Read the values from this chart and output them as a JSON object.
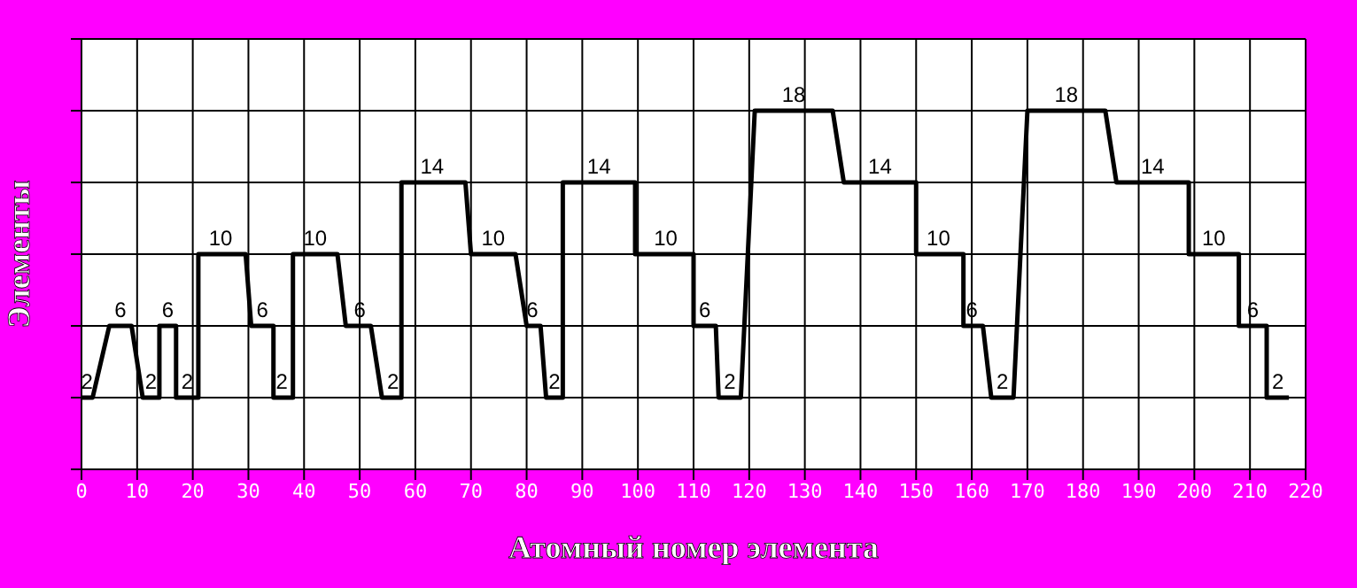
{
  "chart_data": {
    "type": "line",
    "xlabel": "Атомный номер элемента",
    "ylabel": "Элементы",
    "grid": true,
    "marker": "none",
    "line_style": "solid",
    "xlim": [
      0,
      220
    ],
    "xticks": [
      0,
      10,
      20,
      30,
      40,
      50,
      60,
      70,
      80,
      90,
      100,
      110,
      120,
      130,
      140,
      150,
      160,
      170,
      180,
      190,
      200,
      210,
      220
    ],
    "ylim": [
      -2,
      22
    ],
    "yticks": [
      {
        "value": -2,
        "label": null
      },
      {
        "value": 2,
        "label": null
      },
      {
        "value": 6,
        "label": null
      },
      {
        "value": 10,
        "label": null
      },
      {
        "value": 14,
        "label": null
      },
      {
        "value": 18,
        "label": null
      },
      {
        "value": 22,
        "label": null
      }
    ],
    "x": [
      0,
      1,
      2,
      5,
      7,
      9,
      11,
      12.5,
      14,
      14,
      15.5,
      17,
      17,
      19,
      21,
      21,
      25,
      29.5,
      30.5,
      32.5,
      34.5,
      34.5,
      36,
      38,
      38,
      42,
      46,
      47.5,
      50,
      52,
      54,
      56,
      57.5,
      57.5,
      63,
      69,
      70,
      74,
      78,
      80,
      81,
      82.5,
      83.5,
      85,
      86.5,
      86.5,
      93,
      99.5,
      99.5,
      105,
      110,
      110,
      112,
      114,
      114.5,
      116.5,
      118.5,
      121,
      128,
      135,
      137,
      143.5,
      150,
      150,
      154,
      158.5,
      158.5,
      160,
      162,
      163.5,
      165.5,
      167.5,
      170,
      177,
      184,
      186,
      192.5,
      199,
      199,
      203.5,
      208,
      208,
      210.5,
      213,
      213,
      215,
      217
    ],
    "series": [
      {
        "color": "#000000",
        "values": [
          2,
          2,
          2,
          6,
          6,
          6,
          2,
          2,
          2,
          6,
          6,
          6,
          2,
          2,
          2,
          10,
          10,
          10,
          6,
          6,
          6,
          2,
          2,
          2,
          10,
          10,
          10,
          6,
          6,
          6,
          2,
          2,
          2,
          14,
          14,
          14,
          10,
          10,
          10,
          6,
          6,
          6,
          2,
          2,
          2,
          14,
          14,
          14,
          10,
          10,
          10,
          6,
          6,
          6,
          2,
          2,
          2,
          18,
          18,
          18,
          14,
          14,
          14,
          10,
          10,
          10,
          6,
          6,
          6,
          2,
          2,
          2,
          18,
          18,
          18,
          14,
          14,
          14,
          10,
          10,
          10,
          6,
          6,
          6,
          2,
          2,
          2
        ],
        "value_labels": [
          null,
          "2",
          null,
          null,
          "6",
          null,
          null,
          "2",
          null,
          null,
          "6",
          null,
          null,
          "2",
          null,
          null,
          "10",
          null,
          null,
          "6",
          null,
          null,
          "2",
          null,
          null,
          "10",
          null,
          null,
          "6",
          null,
          null,
          "2",
          null,
          null,
          "14",
          null,
          null,
          "10",
          null,
          null,
          "6",
          null,
          null,
          "2",
          null,
          null,
          "14",
          null,
          null,
          "10",
          null,
          null,
          "6",
          null,
          null,
          "2",
          null,
          null,
          "18",
          null,
          null,
          "14",
          null,
          null,
          "10",
          null,
          null,
          "6",
          null,
          null,
          "2",
          null,
          null,
          "18",
          null,
          null,
          "14",
          null,
          null,
          "10",
          null,
          null,
          "6",
          null,
          null,
          "2",
          null
        ]
      }
    ]
  }
}
